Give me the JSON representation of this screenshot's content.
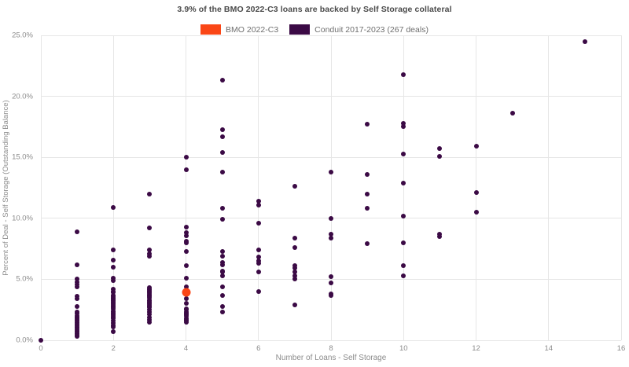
{
  "header": {
    "title": "3.9% of the BMO 2022-C3 loans are backed by Self Storage collateral"
  },
  "colors": {
    "bmo_orange": "#fa4616",
    "conduit_purple": "#3b0a45",
    "gridline": "#e6e6e6",
    "tick_text": "#8c8c8c",
    "title_text": "#4a4a4a"
  },
  "chart_data": {
    "type": "scatter",
    "title": "3.9% of the BMO 2022-C3 loans are backed by Self Storage collateral",
    "xlabel": "Number of Loans - Self Storage",
    "ylabel": "Percent of Deal - Self Storage (Outstanding Balance)",
    "xlim": [
      0,
      16
    ],
    "ylim": [
      0,
      25
    ],
    "x_ticks": [
      0,
      2,
      4,
      6,
      8,
      10,
      12,
      14,
      16
    ],
    "y_ticks": [
      0,
      5,
      10,
      15,
      20,
      25
    ],
    "y_tick_labels": [
      "0.0%",
      "5.0%",
      "10.0%",
      "15.0%",
      "20.0%",
      "25.0%"
    ],
    "grid": true,
    "legend_position": "top-center",
    "series": [
      {
        "name": "BMO 2022-C3",
        "color": "#fa4616",
        "diameter": 11,
        "points": [
          [
            4,
            3.9
          ]
        ]
      },
      {
        "name": "Conduit 2017-2023 (267 deals)",
        "color": "#3b0a45",
        "diameter": 6,
        "points": [
          [
            0,
            0.0
          ],
          [
            1,
            8.9
          ],
          [
            1,
            6.2
          ],
          [
            1,
            5.0
          ],
          [
            1,
            4.8
          ],
          [
            1,
            4.6
          ],
          [
            1,
            4.4
          ],
          [
            1,
            3.6
          ],
          [
            1,
            3.4
          ],
          [
            1,
            2.8
          ],
          [
            1,
            2.3
          ],
          [
            1,
            2.2
          ],
          [
            1,
            2.0
          ],
          [
            1,
            1.9
          ],
          [
            1,
            1.8
          ],
          [
            1,
            1.7
          ],
          [
            1,
            1.6
          ],
          [
            1,
            1.5
          ],
          [
            1,
            1.4
          ],
          [
            1,
            1.3
          ],
          [
            1,
            1.2
          ],
          [
            1,
            1.1
          ],
          [
            1,
            1.0
          ],
          [
            1,
            0.9
          ],
          [
            1,
            0.8
          ],
          [
            1,
            0.7
          ],
          [
            1,
            0.6
          ],
          [
            1,
            0.5
          ],
          [
            1,
            0.4
          ],
          [
            1,
            0.3
          ],
          [
            2,
            10.9
          ],
          [
            2,
            7.4
          ],
          [
            2,
            6.6
          ],
          [
            2,
            6.0
          ],
          [
            2,
            5.1
          ],
          [
            2,
            4.9
          ],
          [
            2,
            4.2
          ],
          [
            2,
            4.0
          ],
          [
            2,
            3.9
          ],
          [
            2,
            3.7
          ],
          [
            2,
            3.6
          ],
          [
            2,
            3.5
          ],
          [
            2,
            3.4
          ],
          [
            2,
            3.3
          ],
          [
            2,
            3.2
          ],
          [
            2,
            3.1
          ],
          [
            2,
            3.0
          ],
          [
            2,
            2.9
          ],
          [
            2,
            2.8
          ],
          [
            2,
            2.7
          ],
          [
            2,
            2.6
          ],
          [
            2,
            2.4
          ],
          [
            2,
            2.3
          ],
          [
            2,
            2.2
          ],
          [
            2,
            2.1
          ],
          [
            2,
            2.0
          ],
          [
            2,
            1.9
          ],
          [
            2,
            1.8
          ],
          [
            2,
            1.6
          ],
          [
            2,
            1.4
          ],
          [
            2,
            1.2
          ],
          [
            2,
            1.1
          ],
          [
            2,
            0.7
          ],
          [
            3,
            12.0
          ],
          [
            3,
            9.2
          ],
          [
            3,
            7.4
          ],
          [
            3,
            7.1
          ],
          [
            3,
            6.9
          ],
          [
            3,
            4.3
          ],
          [
            3,
            4.2
          ],
          [
            3,
            4.1
          ],
          [
            3,
            4.0
          ],
          [
            3,
            3.9
          ],
          [
            3,
            3.8
          ],
          [
            3,
            3.7
          ],
          [
            3,
            3.6
          ],
          [
            3,
            3.5
          ],
          [
            3,
            3.3
          ],
          [
            3,
            3.2
          ],
          [
            3,
            3.1
          ],
          [
            3,
            3.0
          ],
          [
            3,
            2.9
          ],
          [
            3,
            2.8
          ],
          [
            3,
            2.7
          ],
          [
            3,
            2.5
          ],
          [
            3,
            2.3
          ],
          [
            3,
            2.1
          ],
          [
            3,
            1.9
          ],
          [
            3,
            1.7
          ],
          [
            3,
            1.5
          ],
          [
            4,
            15.0
          ],
          [
            4,
            14.0
          ],
          [
            4,
            9.3
          ],
          [
            4,
            8.8
          ],
          [
            4,
            8.6
          ],
          [
            4,
            8.1
          ],
          [
            4,
            8.0
          ],
          [
            4,
            7.3
          ],
          [
            4,
            6.1
          ],
          [
            4,
            5.1
          ],
          [
            4,
            4.4
          ],
          [
            4,
            3.4
          ],
          [
            4,
            3.0
          ],
          [
            4,
            2.6
          ],
          [
            4,
            2.5
          ],
          [
            4,
            2.3
          ],
          [
            4,
            2.2
          ],
          [
            4,
            2.1
          ],
          [
            4,
            2.0
          ],
          [
            4,
            1.8
          ],
          [
            4,
            1.7
          ],
          [
            4,
            1.6
          ],
          [
            4,
            1.5
          ],
          [
            5,
            21.3
          ],
          [
            5,
            17.3
          ],
          [
            5,
            16.7
          ],
          [
            5,
            15.4
          ],
          [
            5,
            13.8
          ],
          [
            5,
            10.8
          ],
          [
            5,
            9.9
          ],
          [
            5,
            7.3
          ],
          [
            5,
            6.9
          ],
          [
            5,
            6.4
          ],
          [
            5,
            6.2
          ],
          [
            5,
            5.7
          ],
          [
            5,
            5.6
          ],
          [
            5,
            5.3
          ],
          [
            5,
            4.4
          ],
          [
            5,
            3.7
          ],
          [
            5,
            2.8
          ],
          [
            5,
            2.3
          ],
          [
            6,
            11.4
          ],
          [
            6,
            11.1
          ],
          [
            6,
            9.6
          ],
          [
            6,
            7.4
          ],
          [
            6,
            6.8
          ],
          [
            6,
            6.5
          ],
          [
            6,
            6.3
          ],
          [
            6,
            5.6
          ],
          [
            6,
            4.0
          ],
          [
            7,
            12.6
          ],
          [
            7,
            8.4
          ],
          [
            7,
            7.6
          ],
          [
            7,
            6.1
          ],
          [
            7,
            5.9
          ],
          [
            7,
            5.6
          ],
          [
            7,
            5.3
          ],
          [
            7,
            5.0
          ],
          [
            7,
            2.9
          ],
          [
            8,
            13.8
          ],
          [
            8,
            10.0
          ],
          [
            8,
            8.7
          ],
          [
            8,
            8.4
          ],
          [
            8,
            5.2
          ],
          [
            8,
            4.7
          ],
          [
            8,
            3.8
          ],
          [
            8,
            3.7
          ],
          [
            9,
            17.7
          ],
          [
            9,
            13.6
          ],
          [
            9,
            12.0
          ],
          [
            9,
            10.8
          ],
          [
            9,
            7.9
          ],
          [
            10,
            21.8
          ],
          [
            10,
            17.8
          ],
          [
            10,
            17.5
          ],
          [
            10,
            15.3
          ],
          [
            10,
            12.9
          ],
          [
            10,
            10.2
          ],
          [
            10,
            8.0
          ],
          [
            10,
            6.1
          ],
          [
            10,
            5.3
          ],
          [
            11,
            15.7
          ],
          [
            11,
            15.1
          ],
          [
            11,
            8.7
          ],
          [
            11,
            8.5
          ],
          [
            12,
            15.9
          ],
          [
            12,
            12.1
          ],
          [
            12,
            10.5
          ],
          [
            13,
            18.6
          ],
          [
            15,
            24.5
          ]
        ]
      }
    ]
  }
}
